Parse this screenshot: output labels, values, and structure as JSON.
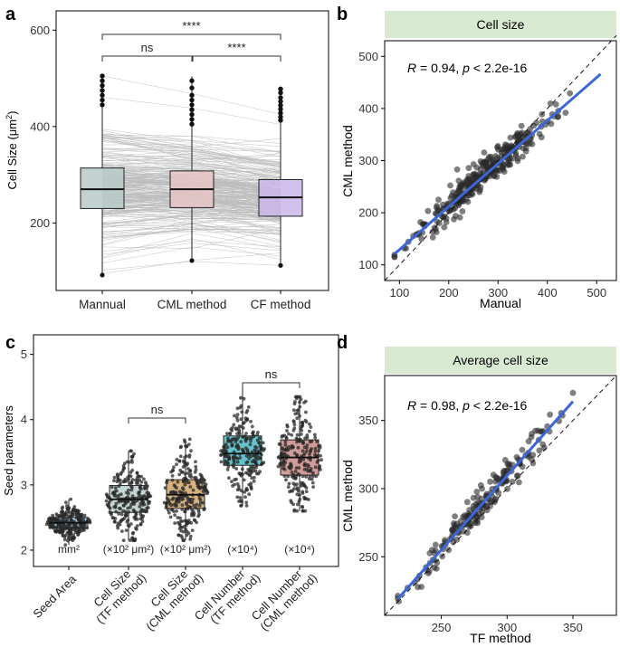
{
  "colors": {
    "manual_box": "#b8c9c8",
    "cml_box": "#e6c4c6",
    "cf_box": "#cbb6ea",
    "seed_area_box": "#9ec8e6",
    "cell_size_tf_box": "#bccfce",
    "cell_size_cml_box": "#cfa46a",
    "cell_number_tf_box": "#4cb8c2",
    "cell_number_cml_box": "#c98b86",
    "header_strip": "#d9ead3",
    "fit_line": "#3a66d8",
    "point": "#2a2a2a",
    "pair_line": "#bdbdbd"
  },
  "chart_data": [
    {
      "id": "a",
      "panel_label": "a",
      "type": "box",
      "ylabel": "Cell Size (μm²)",
      "ylabel_parts": {
        "main": "Cell Size (μm",
        "sup": "2",
        "end": ")"
      },
      "categories": [
        "Mannual",
        "CML method",
        "CF method"
      ],
      "yticks": [
        200,
        400,
        600
      ],
      "ylim": [
        60,
        640
      ],
      "boxes": [
        {
          "name": "Mannual",
          "q1": 230,
          "median": 270,
          "q3": 314,
          "min": 92,
          "max": 506,
          "outliers": [
            445,
            455,
            465,
            475,
            485,
            495,
            505
          ]
        },
        {
          "name": "CML method",
          "q1": 232,
          "median": 270,
          "q3": 308,
          "min": 122,
          "max": 504,
          "outliers": [
            405,
            415,
            425,
            435,
            445,
            455,
            465,
            480,
            495
          ]
        },
        {
          "name": "CF method",
          "q1": 214,
          "median": 253,
          "q3": 290,
          "min": 112,
          "max": 478,
          "outliers": [
            413,
            420,
            428,
            436,
            444,
            452,
            460,
            470,
            478
          ]
        }
      ],
      "significance": [
        {
          "from": "Mannual",
          "to": "CML method",
          "label": "ns"
        },
        {
          "from": "CML method",
          "to": "CF method",
          "label": "****"
        },
        {
          "from": "Mannual",
          "to": "CF method",
          "label": "****"
        }
      ]
    },
    {
      "id": "b",
      "panel_label": "b",
      "type": "scatter",
      "title": "Cell size",
      "xlabel": "Manual",
      "ylabel": "CML method",
      "annotation": {
        "r_symbol": "R",
        "r_text": " = 0.94, ",
        "p_symbol": "p",
        "p_text": " < 2.2e-16"
      },
      "xticks": [
        100,
        200,
        300,
        400,
        500
      ],
      "yticks": [
        100,
        200,
        300,
        400,
        500
      ],
      "xlim": [
        70,
        540
      ],
      "ylim": [
        70,
        530
      ],
      "fit": {
        "x1": 90,
        "y1": 121,
        "x2": 508,
        "y2": 466
      },
      "identity_line": true,
      "n_points": 330
    },
    {
      "id": "c",
      "panel_label": "c",
      "type": "box",
      "ylabel": "Seed parameters",
      "categories": [
        "Seed Area",
        "Cell Size\n(TF method)",
        "Cell Size\n(CML method)",
        "Cell Number\n(TF method)",
        "Cell Number\n(CML method)"
      ],
      "tick_labels": [
        [
          "Seed Area"
        ],
        [
          "Cell Size",
          "(TF method)"
        ],
        [
          "Cell Size",
          "(CML method)"
        ],
        [
          "Cell Number",
          "(TF method)"
        ],
        [
          "Cell Number",
          "(CML method)"
        ]
      ],
      "unit_labels": [
        "mm²",
        "(×10² μm²)",
        "(×10² μm²)",
        "(×10⁴)",
        "(×10⁴)"
      ],
      "yticks": [
        2,
        3,
        4,
        5
      ],
      "ylim": [
        1.75,
        5.3
      ],
      "boxes": [
        {
          "name": "Seed Area",
          "q1": 2.34,
          "median": 2.42,
          "q3": 2.5,
          "min": 2.08,
          "max": 2.78
        },
        {
          "name": "Cell Size (TF method)",
          "q1": 2.58,
          "median": 2.78,
          "q3": 2.99,
          "min": 2.15,
          "max": 3.52
        },
        {
          "name": "Cell Size (CML method)",
          "q1": 2.64,
          "median": 2.85,
          "q3": 3.08,
          "min": 2.15,
          "max": 3.7
        },
        {
          "name": "Cell Number (TF method)",
          "q1": 3.3,
          "median": 3.48,
          "q3": 3.75,
          "min": 2.68,
          "max": 4.5
        },
        {
          "name": "Cell Number (CML method)",
          "q1": 3.15,
          "median": 3.42,
          "q3": 3.69,
          "min": 2.6,
          "max": 4.35
        }
      ],
      "significance": [
        {
          "from": "Cell Size (TF method)",
          "to": "Cell Size (CML method)",
          "label": "ns"
        },
        {
          "from": "Cell Number (TF method)",
          "to": "Cell Number (CML method)",
          "label": "ns"
        }
      ]
    },
    {
      "id": "d",
      "panel_label": "d",
      "type": "scatter",
      "title": "Average cell size",
      "xlabel": "TF method",
      "ylabel": "CML method",
      "annotation": {
        "r_symbol": "R",
        "r_text": " = 0.98, ",
        "p_symbol": "p",
        "p_text": " < 2.2e-16"
      },
      "xticks": [
        250,
        300,
        350
      ],
      "yticks": [
        250,
        300,
        350
      ],
      "xlim": [
        207,
        383
      ],
      "ylim": [
        207,
        383
      ],
      "fit": {
        "x1": 217,
        "y1": 219,
        "x2": 350,
        "y2": 364
      },
      "identity_line": true,
      "n_points": 200
    }
  ]
}
